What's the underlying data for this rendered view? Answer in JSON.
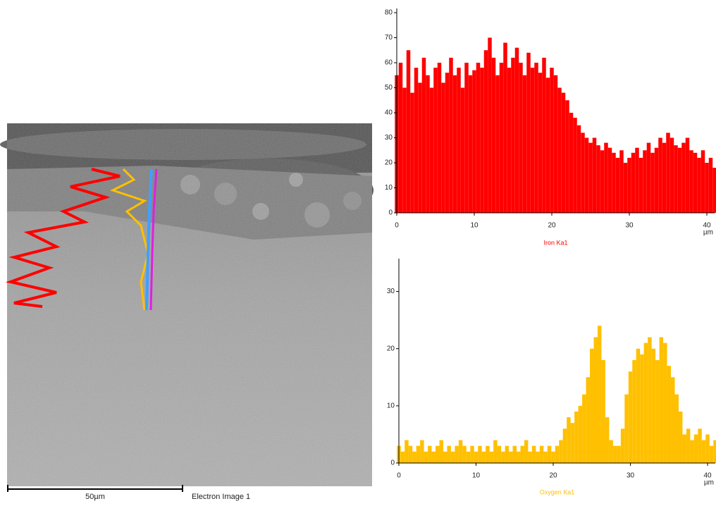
{
  "image": {
    "scale_label": "50µm",
    "caption": "Electron Image 1"
  },
  "chart_data": [
    {
      "type": "bar",
      "x": [
        0,
        0.5,
        1,
        1.5,
        2,
        2.5,
        3,
        3.5,
        4,
        4.5,
        5,
        5.5,
        6,
        6.5,
        7,
        7.5,
        8,
        8.5,
        9,
        9.5,
        10,
        10.5,
        11,
        11.5,
        12,
        12.5,
        13,
        13.5,
        14,
        14.5,
        15,
        15.5,
        16,
        16.5,
        17,
        17.5,
        18,
        18.5,
        19,
        19.5,
        20,
        20.5,
        21,
        21.5,
        22,
        22.5,
        23,
        23.5,
        24,
        24.5,
        25,
        25.5,
        26,
        26.5,
        27,
        27.5,
        28,
        28.5,
        29,
        29.5,
        30,
        30.5,
        31,
        31.5,
        32,
        32.5,
        33,
        33.5,
        34,
        34.5,
        35,
        35.5,
        36,
        36.5,
        37,
        37.5,
        38,
        38.5,
        39,
        39.5,
        40,
        40.5,
        41
      ],
      "series": [
        {
          "name": "Iron Ka1",
          "color": "#ff0000",
          "values": [
            55,
            60,
            50,
            65,
            48,
            58,
            52,
            62,
            55,
            50,
            58,
            60,
            52,
            56,
            62,
            55,
            58,
            50,
            60,
            55,
            57,
            60,
            58,
            65,
            70,
            62,
            55,
            60,
            68,
            58,
            62,
            66,
            60,
            55,
            64,
            58,
            60,
            56,
            62,
            54,
            58,
            55,
            50,
            48,
            45,
            40,
            38,
            35,
            32,
            30,
            28,
            30,
            27,
            25,
            28,
            26,
            24,
            22,
            25,
            20,
            22,
            24,
            26,
            22,
            25,
            28,
            24,
            26,
            30,
            28,
            32,
            30,
            27,
            26,
            28,
            30,
            25,
            24,
            22,
            25,
            20,
            22,
            18
          ]
        }
      ],
      "xlim": [
        0,
        41
      ],
      "ylim": [
        0,
        80
      ],
      "xticks": [
        0,
        10,
        20,
        30,
        40
      ],
      "yticks": [
        0,
        10,
        20,
        30,
        40,
        50,
        60,
        70,
        80
      ],
      "x_label": "µm"
    },
    {
      "type": "bar",
      "x": [
        0,
        0.5,
        1,
        1.5,
        2,
        2.5,
        3,
        3.5,
        4,
        4.5,
        5,
        5.5,
        6,
        6.5,
        7,
        7.5,
        8,
        8.5,
        9,
        9.5,
        10,
        10.5,
        11,
        11.5,
        12,
        12.5,
        13,
        13.5,
        14,
        14.5,
        15,
        15.5,
        16,
        16.5,
        17,
        17.5,
        18,
        18.5,
        19,
        19.5,
        20,
        20.5,
        21,
        21.5,
        22,
        22.5,
        23,
        23.5,
        24,
        24.5,
        25,
        25.5,
        26,
        26.5,
        27,
        27.5,
        28,
        28.5,
        29,
        29.5,
        30,
        30.5,
        31,
        31.5,
        32,
        32.5,
        33,
        33.5,
        34,
        34.5,
        35,
        35.5,
        36,
        36.5,
        37,
        37.5,
        38,
        38.5,
        39,
        39.5,
        40,
        40.5,
        41
      ],
      "series": [
        {
          "name": "Oxygen Ka1",
          "color": "#ffc000",
          "values": [
            3,
            2,
            4,
            3,
            2,
            3,
            4,
            2,
            3,
            2,
            3,
            4,
            2,
            3,
            2,
            3,
            4,
            3,
            2,
            3,
            2,
            3,
            2,
            3,
            2,
            4,
            3,
            2,
            3,
            2,
            3,
            2,
            3,
            4,
            2,
            3,
            2,
            3,
            2,
            3,
            2,
            3,
            4,
            6,
            8,
            7,
            9,
            10,
            12,
            15,
            20,
            22,
            24,
            18,
            8,
            4,
            3,
            3,
            6,
            12,
            16,
            18,
            20,
            19,
            21,
            22,
            20,
            18,
            22,
            21,
            17,
            15,
            12,
            9,
            5,
            6,
            4,
            5,
            6,
            4,
            5,
            3,
            4
          ]
        }
      ],
      "xlim": [
        0,
        41
      ],
      "ylim": [
        0,
        35
      ],
      "xticks": [
        0,
        10,
        20,
        30,
        40
      ],
      "yticks": [
        0,
        10,
        20,
        30
      ],
      "x_label": "µm"
    }
  ]
}
